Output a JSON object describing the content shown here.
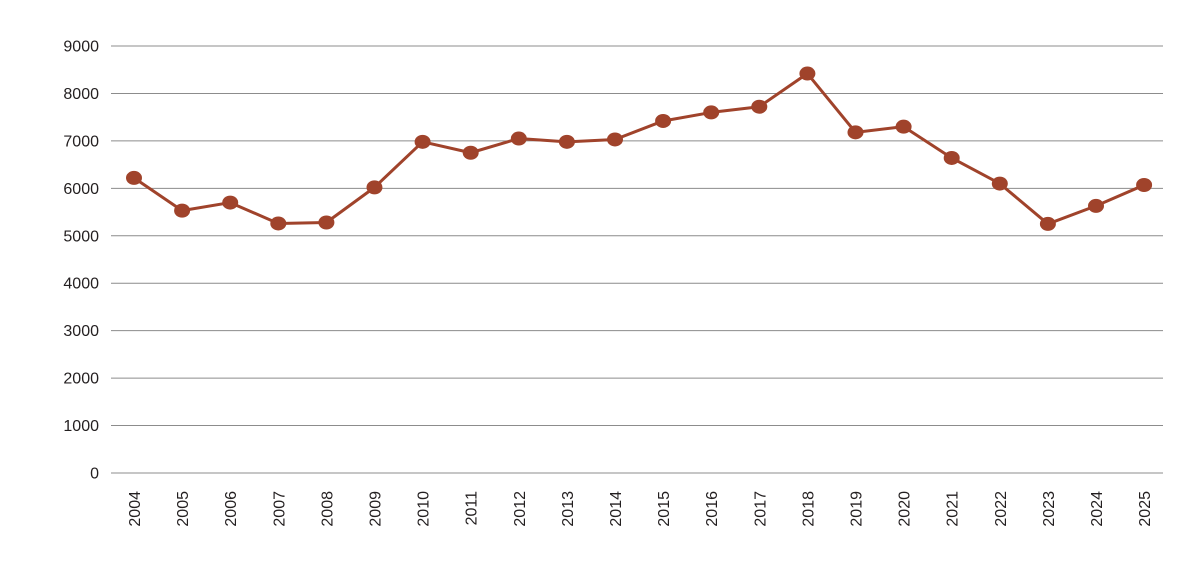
{
  "chart_data": {
    "type": "line",
    "title": "",
    "xlabel": "",
    "ylabel": "",
    "categories": [
      "2004",
      "2005",
      "2006",
      "2007",
      "2008",
      "2009",
      "2010",
      "2011",
      "2012",
      "2013",
      "2014",
      "2015",
      "2016",
      "2017",
      "2018",
      "2019",
      "2020",
      "2021",
      "2022",
      "2023",
      "2024",
      "2025"
    ],
    "series": [
      {
        "values": [
          6220,
          5530,
          5700,
          5260,
          5280,
          6020,
          6980,
          6750,
          7050,
          6980,
          7030,
          7420,
          7600,
          7720,
          8420,
          7180,
          7300,
          6640,
          6100,
          5250,
          5630,
          6070
        ]
      }
    ],
    "ylim": [
      0,
      9000
    ],
    "yticks": [
      "0",
      "1000",
      "2000",
      "3000",
      "4000",
      "5000",
      "6000",
      "7000",
      "8000",
      "9000"
    ],
    "grid": "horizontal",
    "legend": "none",
    "colors": {
      "series": "#a0432b",
      "grid": "#8c8c8c",
      "text": "#231f20"
    }
  }
}
